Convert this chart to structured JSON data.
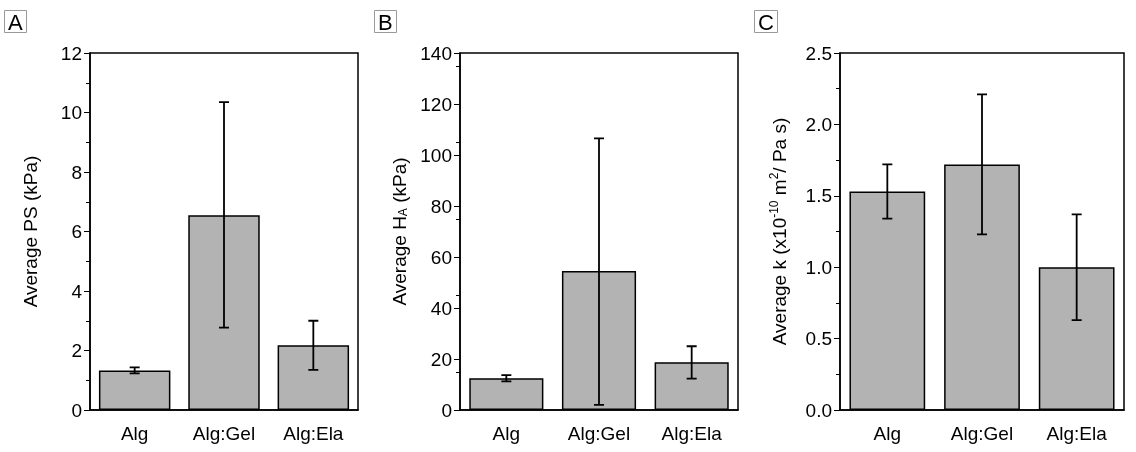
{
  "chart_data": [
    {
      "type": "bar",
      "title": "A",
      "ylabel": "Average PS (kPa)",
      "categories": [
        "Alg",
        "Alg:Gel",
        "Alg:Ela"
      ],
      "color": "#b3b3b3",
      "values": [
        1.33,
        6.55,
        2.18
      ],
      "errors": [
        [
          1.23,
          1.43
        ],
        [
          2.77,
          10.35
        ],
        [
          1.35,
          3.0
        ]
      ],
      "ylim": [
        0,
        12
      ],
      "yticks": [
        0,
        2,
        4,
        6,
        8,
        10,
        12
      ]
    },
    {
      "type": "bar",
      "title": "B",
      "ylabel": "Average H$_{A}$ (kPa)",
      "categories": [
        "Alg",
        "Alg:Gel",
        "Alg:Ela"
      ],
      "color": "#b3b3b3",
      "values": [
        12.5,
        54.5,
        18.7
      ],
      "errors": [
        [
          11.2,
          13.7
        ],
        [
          2,
          106.5
        ],
        [
          12.3,
          25
        ]
      ],
      "ylim": [
        0,
        140
      ],
      "yticks": [
        0,
        20,
        40,
        60,
        80,
        100,
        120,
        140
      ]
    },
    {
      "type": "bar",
      "title": "C",
      "ylabel": "Average k (x10$^{-10}$ m$^{2}$/ Pa s)",
      "categories": [
        "Alg",
        "Alg:Gel",
        "Alg:Ela"
      ],
      "color": "#b3b3b3",
      "values": [
        1.53,
        1.72,
        1.0
      ],
      "errors": [
        [
          1.34,
          1.72
        ],
        [
          1.23,
          2.21
        ],
        [
          0.63,
          1.37
        ]
      ],
      "ylim": [
        0,
        2.5
      ],
      "yticks": [
        {
          "value": 0,
          "label": "0.0"
        },
        {
          "value": 0.5,
          "label": "0.5"
        },
        {
          "value": 1,
          "label": "1.0"
        },
        {
          "value": 1.5,
          "label": "1.5"
        },
        {
          "value": 2,
          "label": "2.0"
        },
        {
          "value": 2.5,
          "label": "2.5"
        }
      ]
    }
  ]
}
